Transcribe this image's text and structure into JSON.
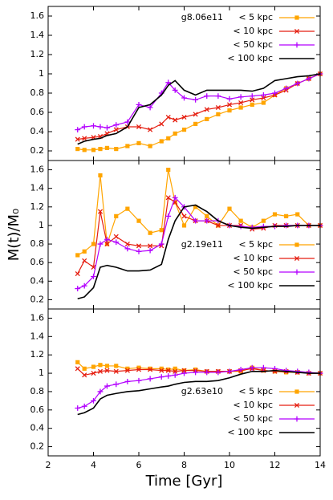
{
  "chart_data": [
    {
      "type": "line",
      "title": "g8.06e11",
      "legend": "upper right",
      "xlim": [
        2,
        14
      ],
      "ylim": [
        0.1,
        1.7
      ],
      "yticks": [
        0.2,
        0.4,
        0.6,
        0.8,
        1,
        1.2,
        1.4,
        1.6
      ],
      "x": [
        3.3,
        3.6,
        4.0,
        4.3,
        4.6,
        5.0,
        5.5,
        6.0,
        6.5,
        7.0,
        7.3,
        7.6,
        8.0,
        8.5,
        9.0,
        9.5,
        10,
        10.5,
        11,
        11.5,
        12,
        12.5,
        13,
        13.5,
        14
      ],
      "series": [
        {
          "name": "< 5 kpc",
          "color": "#ffa500",
          "marker": "square",
          "values": [
            0.22,
            0.21,
            0.21,
            0.22,
            0.23,
            0.22,
            0.25,
            0.28,
            0.25,
            0.3,
            0.33,
            0.38,
            0.42,
            0.48,
            0.53,
            0.58,
            0.62,
            0.65,
            0.68,
            0.7,
            0.78,
            0.85,
            0.9,
            0.95,
            1.0
          ]
        },
        {
          "name": "< 10 kpc",
          "color": "#e51e10",
          "marker": "x",
          "values": [
            0.32,
            0.33,
            0.34,
            0.35,
            0.38,
            0.42,
            0.45,
            0.45,
            0.42,
            0.48,
            0.55,
            0.52,
            0.55,
            0.58,
            0.63,
            0.65,
            0.68,
            0.7,
            0.73,
            0.75,
            0.78,
            0.83,
            0.9,
            0.95,
            1.0
          ]
        },
        {
          "name": "< 50 kpc",
          "color": "#b300ff",
          "marker": "plus",
          "values": [
            0.42,
            0.45,
            0.46,
            0.45,
            0.44,
            0.47,
            0.5,
            0.68,
            0.65,
            0.8,
            0.91,
            0.83,
            0.75,
            0.73,
            0.77,
            0.77,
            0.74,
            0.76,
            0.77,
            0.78,
            0.8,
            0.85,
            0.9,
            0.95,
            1.0
          ]
        },
        {
          "name": "< 100 kpc",
          "color": "#000000",
          "values": [
            0.27,
            0.3,
            0.32,
            0.33,
            0.36,
            0.38,
            0.45,
            0.65,
            0.68,
            0.78,
            0.88,
            0.93,
            0.83,
            0.78,
            0.83,
            0.83,
            0.83,
            0.83,
            0.82,
            0.85,
            0.93,
            0.95,
            0.97,
            0.98,
            1.0
          ]
        }
      ]
    },
    {
      "type": "line",
      "title": "g2.19e11",
      "legend": "lower right",
      "ylabel": "M(t)/M₀",
      "xlim": [
        2,
        14
      ],
      "ylim": [
        0.1,
        1.7
      ],
      "yticks": [
        0.2,
        0.4,
        0.6,
        0.8,
        1,
        1.2,
        1.4,
        1.6
      ],
      "x": [
        3.3,
        3.6,
        4.0,
        4.3,
        4.6,
        5.0,
        5.5,
        6.0,
        6.5,
        7.0,
        7.3,
        7.6,
        8.0,
        8.5,
        9.0,
        9.5,
        10,
        10.5,
        11,
        11.5,
        12,
        12.5,
        13,
        13.5,
        14
      ],
      "series": [
        {
          "name": "< 5 kpc",
          "color": "#ffa500",
          "marker": "square",
          "values": [
            0.68,
            0.72,
            0.8,
            1.54,
            0.8,
            1.1,
            1.18,
            1.05,
            0.92,
            0.95,
            1.6,
            1.25,
            1.0,
            1.2,
            1.1,
            1.0,
            1.18,
            1.05,
            0.98,
            1.05,
            1.12,
            1.1,
            1.12,
            1.0,
            1.0
          ]
        },
        {
          "name": "< 10 kpc",
          "color": "#e51e10",
          "marker": "x",
          "values": [
            0.48,
            0.62,
            0.55,
            1.15,
            0.8,
            0.88,
            0.8,
            0.78,
            0.78,
            0.78,
            1.3,
            1.25,
            1.1,
            1.05,
            1.05,
            1.0,
            1.0,
            1.0,
            0.96,
            0.97,
            1.0,
            1.0,
            1.0,
            1.0,
            1.0
          ]
        },
        {
          "name": "< 50 kpc",
          "color": "#b300ff",
          "marker": "plus",
          "values": [
            0.32,
            0.35,
            0.45,
            0.8,
            0.85,
            0.82,
            0.75,
            0.72,
            0.73,
            0.8,
            1.1,
            1.3,
            1.2,
            1.05,
            1.05,
            1.05,
            1.0,
            0.99,
            0.98,
            0.99,
            0.99,
            1.0,
            1.0,
            1.0,
            1.0
          ]
        },
        {
          "name": "< 100 kpc",
          "color": "#000000",
          "values": [
            0.21,
            0.23,
            0.33,
            0.55,
            0.57,
            0.55,
            0.51,
            0.51,
            0.52,
            0.58,
            0.85,
            1.05,
            1.2,
            1.22,
            1.15,
            1.05,
            1.0,
            0.98,
            0.97,
            0.98,
            0.99,
            0.99,
            1.0,
            1.0,
            1.0
          ]
        }
      ]
    },
    {
      "type": "line",
      "title": "g2.63e10",
      "legend": "lower right",
      "xlabel": "Time [Gyr]",
      "xlim": [
        2,
        14
      ],
      "ylim": [
        0.1,
        1.7
      ],
      "xticks": [
        2,
        4,
        6,
        8,
        10,
        12,
        14
      ],
      "yticks": [
        0.2,
        0.4,
        0.6,
        0.8,
        1,
        1.2,
        1.4,
        1.6
      ],
      "x": [
        3.3,
        3.6,
        4.0,
        4.3,
        4.6,
        5.0,
        5.5,
        6.0,
        6.5,
        7.0,
        7.3,
        7.6,
        8.0,
        8.5,
        9.0,
        9.5,
        10,
        10.5,
        11,
        11.5,
        12,
        12.5,
        13,
        13.5,
        14
      ],
      "series": [
        {
          "name": "< 5 kpc",
          "color": "#ffa500",
          "marker": "square",
          "values": [
            1.12,
            1.05,
            1.07,
            1.09,
            1.08,
            1.08,
            1.05,
            1.06,
            1.05,
            1.05,
            1.04,
            1.05,
            1.03,
            1.04,
            1.02,
            1.02,
            1.02,
            1.02,
            1.06,
            1.03,
            1.02,
            1.01,
            1.01,
            1.0,
            1.0
          ]
        },
        {
          "name": "< 10 kpc",
          "color": "#e51e10",
          "marker": "x",
          "values": [
            1.05,
            0.98,
            1.0,
            1.02,
            1.03,
            1.02,
            1.03,
            1.04,
            1.04,
            1.03,
            1.03,
            1.02,
            1.03,
            1.03,
            1.02,
            1.02,
            1.02,
            1.03,
            1.05,
            1.03,
            1.02,
            1.02,
            1.01,
            1.0,
            1.0
          ]
        },
        {
          "name": "< 50 kpc",
          "color": "#b300ff",
          "marker": "plus",
          "values": [
            0.62,
            0.64,
            0.7,
            0.8,
            0.86,
            0.88,
            0.91,
            0.92,
            0.94,
            0.96,
            0.97,
            0.98,
            1.0,
            1.01,
            1.01,
            1.01,
            1.02,
            1.04,
            1.06,
            1.06,
            1.05,
            1.03,
            1.02,
            1.01,
            1.0
          ]
        },
        {
          "name": "< 100 kpc",
          "color": "#000000",
          "values": [
            0.55,
            0.57,
            0.62,
            0.72,
            0.76,
            0.78,
            0.8,
            0.81,
            0.83,
            0.85,
            0.86,
            0.88,
            0.9,
            0.91,
            0.91,
            0.92,
            0.95,
            0.99,
            1.02,
            1.02,
            1.03,
            1.02,
            1.01,
            1.0,
            1.0
          ]
        }
      ]
    }
  ]
}
